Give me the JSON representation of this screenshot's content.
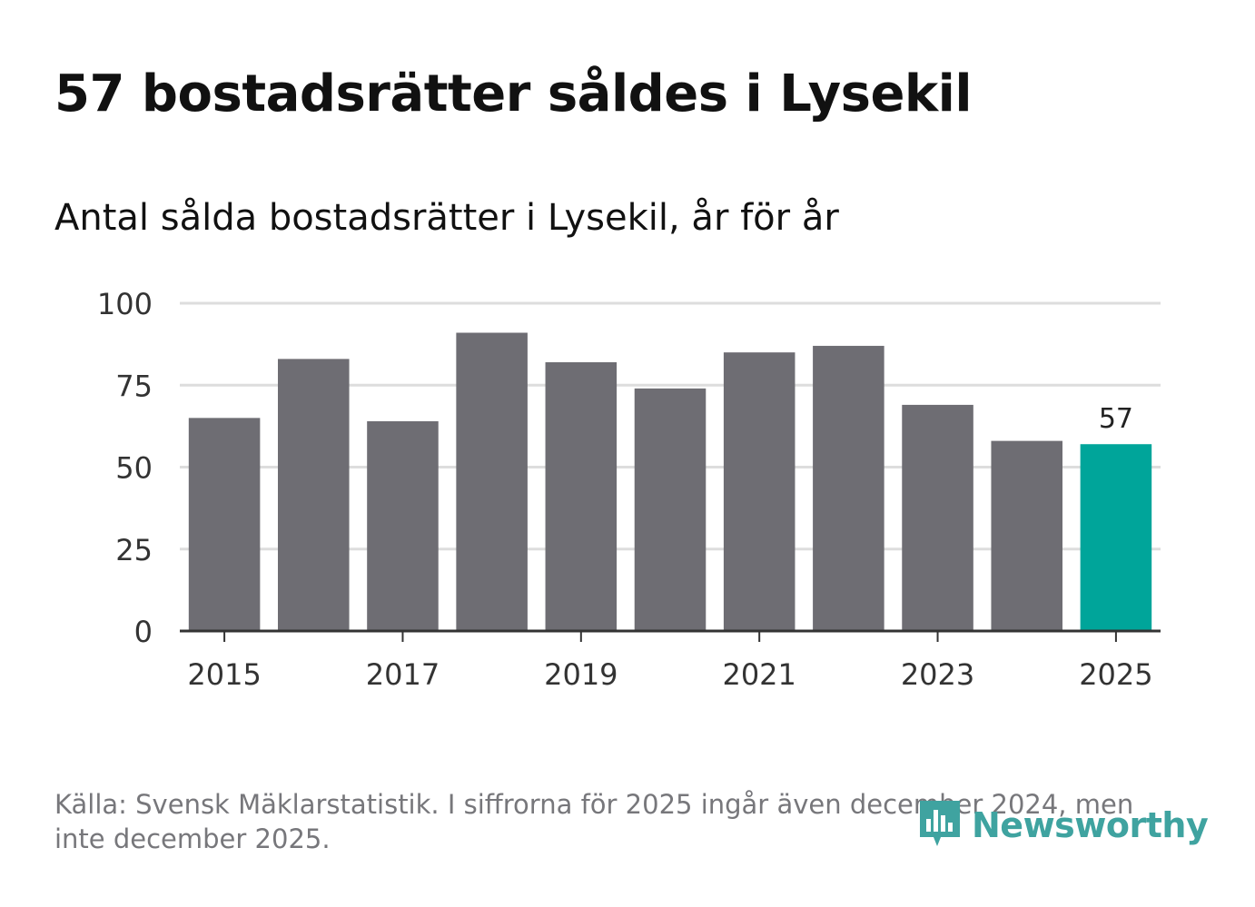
{
  "header": {
    "title": "57 bostadsrätter såldes i Lysekil",
    "subtitle": "Antal sålda bostadsrätter i Lysekil, år för år"
  },
  "footer": {
    "source": "Källa: Svensk Mäklarstatistik. I siffrorna för 2025 ingår även december 2024, men inte december 2025."
  },
  "logo": {
    "text": "Newsworthy",
    "icon": "newsworthy-bar-icon"
  },
  "colors": {
    "bar": "#6e6d73",
    "highlight": "#00a59a",
    "grid": "#dddddd",
    "axis": "#333333",
    "tick_text": "#333333",
    "logo": "#3fa3a0"
  },
  "chart_data": {
    "type": "bar",
    "title": "Antal sålda bostadsrätter i Lysekil, år för år",
    "xlabel": "",
    "ylabel": "",
    "categories": [
      "2015",
      "2016",
      "2017",
      "2018",
      "2019",
      "2020",
      "2021",
      "2022",
      "2023",
      "2024",
      "2025"
    ],
    "values": [
      65,
      83,
      64,
      91,
      82,
      74,
      85,
      87,
      69,
      58,
      57
    ],
    "x_tick_labels": [
      "2015",
      "2017",
      "2019",
      "2021",
      "2023",
      "2025"
    ],
    "y_ticks": [
      0,
      25,
      50,
      75,
      100
    ],
    "ylim": [
      0,
      100
    ],
    "highlight_category": "2025",
    "data_labels": [
      {
        "category": "2025",
        "text": "57"
      }
    ],
    "grid": true,
    "legend": "none"
  }
}
